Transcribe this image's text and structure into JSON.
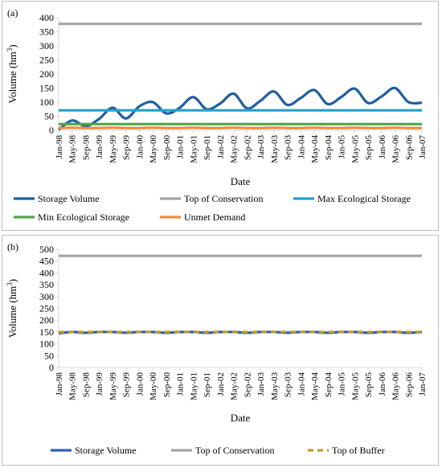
{
  "chart_data": [
    {
      "type": "line",
      "panel_label": "(a)",
      "xlabel": "Date",
      "ylabel_main": "Volume (hm",
      "ylabel_sup": "3",
      "ylabel_tail": ")",
      "ylim": [
        0,
        400
      ],
      "yticks": [
        0,
        50,
        100,
        150,
        200,
        250,
        300,
        350,
        400
      ],
      "grid": false,
      "legend": "bottom",
      "x_categories": [
        "Jan-98",
        "May-98",
        "Sep-98",
        "Jan-99",
        "May-99",
        "Sep-99",
        "Jan-00",
        "May-00",
        "Sep-00",
        "Jan-01",
        "May-01",
        "Sep-01",
        "Jan-02",
        "May-02",
        "Sep-02",
        "Jan-03",
        "May-03",
        "Sep-03",
        "Jan-04",
        "May-04",
        "Sep-04",
        "Jan-05",
        "May-05",
        "Sep-05",
        "Jan-06",
        "May-06",
        "Sep-06",
        "Jan-07"
      ],
      "series": [
        {
          "name": "Storage Volume",
          "color": "#1f5fa0",
          "dash": "",
          "values": [
            2,
            35,
            15,
            40,
            80,
            42,
            85,
            100,
            60,
            80,
            118,
            75,
            95,
            130,
            78,
            105,
            138,
            90,
            115,
            143,
            93,
            118,
            148,
            97,
            120,
            150,
            100,
            98
          ]
        },
        {
          "name": "Top of Conservation",
          "color": "#a5a5a5",
          "dash": "",
          "values": [
            378,
            378,
            378,
            378,
            378,
            378,
            378,
            378,
            378,
            378,
            378,
            378,
            378,
            378,
            378,
            378,
            378,
            378,
            378,
            378,
            378,
            378,
            378,
            378,
            378,
            378,
            378,
            378
          ]
        },
        {
          "name": "Max Ecological Storage",
          "color": "#23a0c8",
          "dash": "",
          "values": [
            71,
            71,
            71,
            71,
            71,
            71,
            71,
            71,
            71,
            71,
            71,
            71,
            71,
            71,
            71,
            71,
            71,
            71,
            71,
            71,
            71,
            71,
            71,
            71,
            71,
            71,
            71,
            71
          ]
        },
        {
          "name": "Min Ecological Storage",
          "color": "#4ea64a",
          "dash": "",
          "values": [
            22,
            22,
            22,
            22,
            22,
            22,
            22,
            22,
            22,
            22,
            22,
            22,
            22,
            22,
            22,
            22,
            22,
            22,
            22,
            22,
            22,
            22,
            22,
            22,
            22,
            22,
            22,
            22
          ]
        },
        {
          "name": "Unmet Demand",
          "color": "#f08a3c",
          "dash": "",
          "values": [
            8,
            9,
            8,
            8,
            9,
            8,
            8,
            9,
            8,
            8,
            9,
            8,
            8,
            9,
            8,
            8,
            9,
            8,
            8,
            9,
            8,
            8,
            9,
            8,
            8,
            9,
            8,
            8
          ]
        }
      ]
    },
    {
      "type": "line",
      "panel_label": "(b)",
      "xlabel": "Date",
      "ylabel_main": "Volume (hm",
      "ylabel_sup": "3",
      "ylabel_tail": ")",
      "ylim": [
        0,
        500
      ],
      "yticks": [
        0,
        50,
        100,
        150,
        200,
        250,
        300,
        350,
        400,
        450,
        500
      ],
      "grid": false,
      "legend": "bottom",
      "x_categories": [
        "Jan-98",
        "May-98",
        "Sep-98",
        "Jan-99",
        "May-99",
        "Sep-99",
        "Jan-00",
        "May-00",
        "Sep-00",
        "Jan-01",
        "May-01",
        "Sep-01",
        "Jan-02",
        "May-02",
        "Sep-02",
        "Jan-03",
        "May-03",
        "Sep-03",
        "Jan-04",
        "May-04",
        "Sep-04",
        "Jan-05",
        "May-05",
        "Sep-05",
        "Jan-06",
        "May-06",
        "Sep-06",
        "Jan-07"
      ],
      "series": [
        {
          "name": "Storage Volume",
          "color": "#2f5fb8",
          "dash": "",
          "values": [
            145,
            150,
            147,
            150,
            150,
            147,
            150,
            150,
            147,
            150,
            150,
            147,
            150,
            150,
            147,
            150,
            150,
            147,
            150,
            150,
            147,
            150,
            150,
            147,
            150,
            150,
            147,
            150
          ]
        },
        {
          "name": "Top of Conservation",
          "color": "#a5a5a5",
          "dash": "",
          "values": [
            472,
            472,
            472,
            472,
            472,
            472,
            472,
            472,
            472,
            472,
            472,
            472,
            472,
            472,
            472,
            472,
            472,
            472,
            472,
            472,
            472,
            472,
            472,
            472,
            472,
            472,
            472,
            472
          ]
        },
        {
          "name": "Top of Buffer",
          "color": "#c49a2a",
          "dash": "7,5",
          "values": [
            150,
            150,
            150,
            150,
            150,
            150,
            150,
            150,
            150,
            150,
            150,
            150,
            150,
            150,
            150,
            150,
            150,
            150,
            150,
            150,
            150,
            150,
            150,
            150,
            150,
            150,
            150,
            150
          ]
        }
      ]
    }
  ]
}
